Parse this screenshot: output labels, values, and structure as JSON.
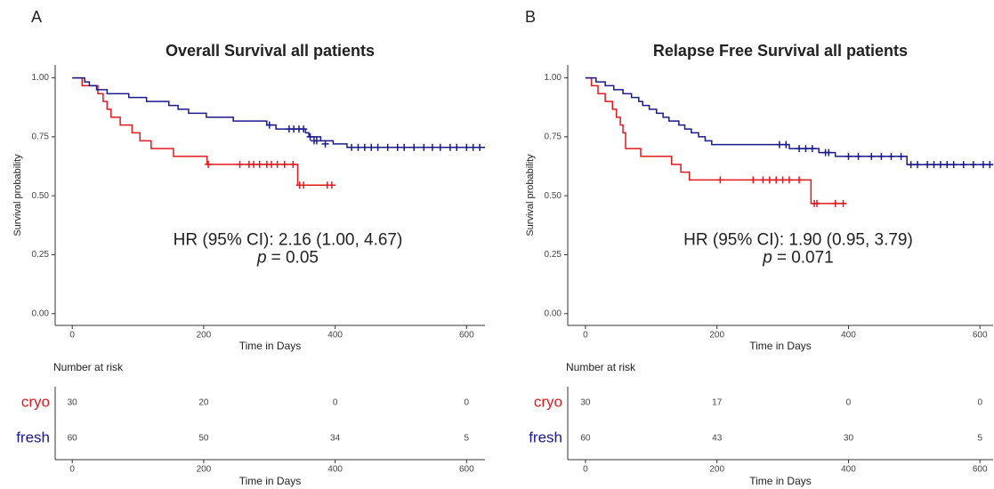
{
  "chart_data": [
    {
      "type": "step",
      "panel_label": "A",
      "title": "Overall Survival all patients",
      "xlabel": "Time in Days",
      "ylabel": "Survival probability",
      "xlim": [
        -26,
        628
      ],
      "ylim": [
        -0.05,
        1.055
      ],
      "xticks": [
        0,
        200,
        400,
        600
      ],
      "yticks": [
        {
          "value": 0,
          "label": "0.00"
        },
        {
          "value": 0.25,
          "label": "0.25"
        },
        {
          "value": 0.5,
          "label": "0.50"
        },
        {
          "value": 0.75,
          "label": "0.75"
        },
        {
          "value": 1,
          "label": "1.00"
        }
      ],
      "hr_text": "HR (95% CI): 2.16 (1.00, 4.67)",
      "p_symbol": "p",
      "p_value": "= 0.05",
      "series": [
        {
          "name": "cryo",
          "color": "#e0191c",
          "x": [
            0,
            15,
            39,
            47,
            53,
            59,
            73,
            91,
            103,
            120,
            154,
            205,
            343,
            395
          ],
          "values": [
            1,
            0.967,
            0.933,
            0.9,
            0.867,
            0.833,
            0.8,
            0.767,
            0.733,
            0.7,
            0.667,
            0.633,
            0.545,
            0.545
          ],
          "censor_x": [
            207,
            255,
            269,
            276,
            285,
            296,
            303,
            312,
            323,
            336,
            346,
            352,
            388,
            395
          ],
          "censor_values": [
            0.633,
            0.633,
            0.633,
            0.633,
            0.633,
            0.633,
            0.633,
            0.633,
            0.633,
            0.633,
            0.545,
            0.545,
            0.545,
            0.545
          ]
        },
        {
          "name": "fresh",
          "color": "#1a1a8c",
          "x": [
            0,
            19,
            26,
            37,
            53,
            86,
            113,
            147,
            161,
            177,
            204,
            245,
            296,
            310,
            355,
            360,
            378,
            397,
            418,
            628
          ],
          "values": [
            1,
            0.983,
            0.967,
            0.95,
            0.933,
            0.917,
            0.9,
            0.883,
            0.867,
            0.85,
            0.833,
            0.817,
            0.8,
            0.783,
            0.767,
            0.75,
            0.733,
            0.72,
            0.705,
            0.705
          ],
          "censor_x": [
            300,
            330,
            337,
            345,
            352,
            362,
            368,
            372,
            385,
            425,
            435,
            445,
            455,
            465,
            480,
            495,
            505,
            520,
            535,
            548,
            560,
            575,
            585,
            600,
            610,
            620
          ],
          "censor_values": [
            0.8,
            0.783,
            0.783,
            0.783,
            0.783,
            0.75,
            0.733,
            0.733,
            0.72,
            0.705,
            0.705,
            0.705,
            0.705,
            0.705,
            0.705,
            0.705,
            0.705,
            0.705,
            0.705,
            0.705,
            0.705,
            0.705,
            0.705,
            0.705,
            0.705,
            0.705
          ]
        }
      ],
      "risk_table": {
        "title": "Number at risk",
        "counts": [
          [
            30,
            20,
            0,
            0
          ],
          [
            60,
            50,
            34,
            5
          ]
        ]
      }
    },
    {
      "type": "step",
      "panel_label": "B",
      "title": "Relapse Free Survival all patients",
      "xlabel": "Time in Days",
      "ylabel": "Survival probability",
      "xlim": [
        -27,
        620
      ],
      "ylim": [
        -0.05,
        1.055
      ],
      "xticks": [
        0,
        200,
        400,
        600
      ],
      "yticks": [
        {
          "value": 0,
          "label": "0.00"
        },
        {
          "value": 0.25,
          "label": "0.25"
        },
        {
          "value": 0.5,
          "label": "0.50"
        },
        {
          "value": 0.75,
          "label": "0.75"
        },
        {
          "value": 1,
          "label": "1.00"
        }
      ],
      "hr_text": "HR (95% CI): 1.90 (0.95, 3.79)",
      "p_symbol": "p",
      "p_value": "= 0.071",
      "series": [
        {
          "name": "cryo",
          "color": "#e0191c",
          "x": [
            0,
            9,
            19,
            30,
            41,
            47,
            53,
            57,
            61,
            84,
            131,
            145,
            158,
            343,
            395
          ],
          "values": [
            1,
            0.967,
            0.933,
            0.9,
            0.867,
            0.833,
            0.8,
            0.767,
            0.7,
            0.667,
            0.633,
            0.6,
            0.567,
            0.467,
            0.467
          ],
          "censor_x": [
            205,
            255,
            270,
            280,
            290,
            300,
            310,
            325,
            348,
            352,
            380,
            392
          ],
          "censor_values": [
            0.567,
            0.567,
            0.567,
            0.567,
            0.567,
            0.567,
            0.567,
            0.567,
            0.467,
            0.467,
            0.467,
            0.467
          ]
        },
        {
          "name": "fresh",
          "color": "#1a1a8c",
          "x": [
            0,
            16,
            30,
            43,
            57,
            70,
            81,
            87,
            97,
            108,
            118,
            127,
            142,
            151,
            161,
            172,
            182,
            192,
            310,
            355,
            380,
            489,
            620
          ],
          "values": [
            1,
            0.983,
            0.967,
            0.95,
            0.933,
            0.917,
            0.9,
            0.883,
            0.867,
            0.85,
            0.833,
            0.817,
            0.8,
            0.783,
            0.767,
            0.75,
            0.733,
            0.717,
            0.7,
            0.683,
            0.667,
            0.632,
            0.632
          ],
          "censor_x": [
            295,
            305,
            325,
            335,
            345,
            365,
            370,
            400,
            415,
            435,
            450,
            465,
            480,
            495,
            505,
            520,
            530,
            540,
            550,
            560,
            575,
            590,
            605,
            615
          ],
          "censor_values": [
            0.717,
            0.717,
            0.7,
            0.7,
            0.7,
            0.683,
            0.683,
            0.667,
            0.667,
            0.667,
            0.667,
            0.667,
            0.667,
            0.632,
            0.632,
            0.632,
            0.632,
            0.632,
            0.632,
            0.632,
            0.632,
            0.632,
            0.632,
            0.632
          ]
        }
      ],
      "risk_table": {
        "title": "Number at risk",
        "counts": [
          [
            30,
            17,
            0,
            0
          ],
          [
            60,
            43,
            30,
            5
          ]
        ]
      }
    }
  ]
}
